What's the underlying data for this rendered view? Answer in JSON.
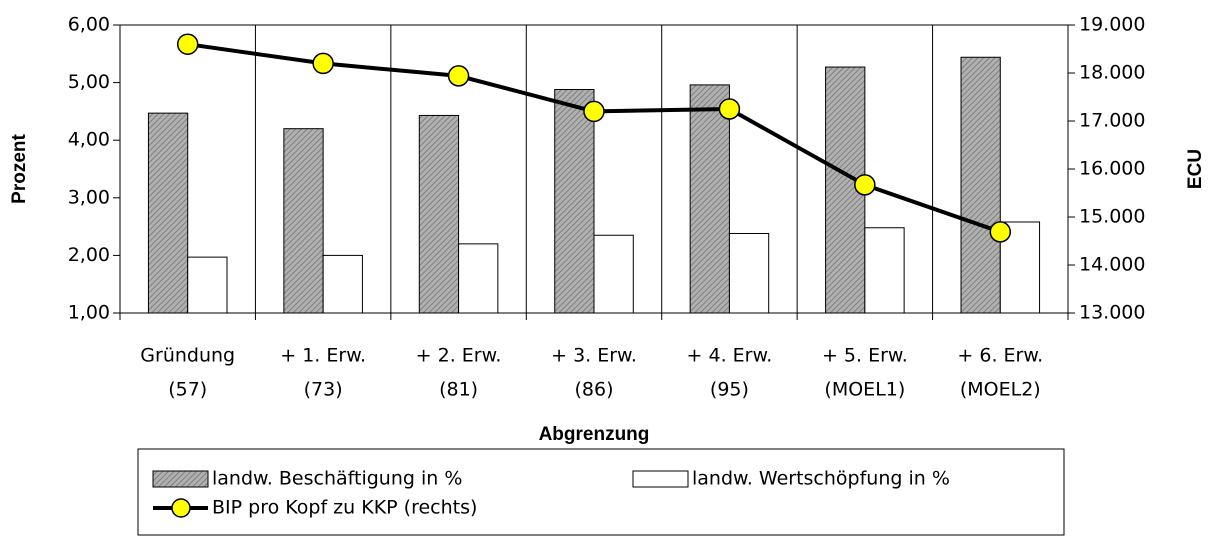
{
  "chart_data": {
    "type": "bar_line",
    "categories": [
      [
        "Gründung",
        "(57)"
      ],
      [
        "+ 1. Erw.",
        "(73)"
      ],
      [
        "+ 2. Erw.",
        "(81)"
      ],
      [
        "+ 3. Erw.",
        "(86)"
      ],
      [
        "+ 4. Erw.",
        "(95)"
      ],
      [
        "+ 5. Erw.",
        "(MOEL1)"
      ],
      [
        "+ 6. Erw.",
        "(MOEL2)"
      ]
    ],
    "x_label": "Abgrenzung",
    "y_label": "Prozent",
    "y2_label": "ECU",
    "ylim": [
      1,
      6
    ],
    "yticks": [
      {
        "value": 1,
        "label": "1,00"
      },
      {
        "value": 2,
        "label": "2,00"
      },
      {
        "value": 3,
        "label": "3,00"
      },
      {
        "value": 4,
        "label": "4,00"
      },
      {
        "value": 5,
        "label": "5,00"
      },
      {
        "value": 6,
        "label": "6,00"
      }
    ],
    "y2lim": [
      13000,
      19000
    ],
    "y2ticks": [
      {
        "value": 13000,
        "label": "13.000"
      },
      {
        "value": 14000,
        "label": "14.000"
      },
      {
        "value": 15000,
        "label": "15.000"
      },
      {
        "value": 16000,
        "label": "16.000"
      },
      {
        "value": 17000,
        "label": "17.000"
      },
      {
        "value": 18000,
        "label": "18.000"
      },
      {
        "value": 19000,
        "label": "19.000"
      }
    ],
    "series": [
      {
        "name": "landw. Beschäftigung in %",
        "type": "bar",
        "color": "#a6a6a6",
        "values": [
          4.47,
          4.2,
          4.43,
          4.88,
          4.96,
          5.27,
          5.44
        ]
      },
      {
        "name": "landw. Wertschöpfung in %",
        "type": "bar",
        "color": "#ffffff",
        "values": [
          1.97,
          2.0,
          2.2,
          2.35,
          2.38,
          2.48,
          2.58
        ]
      },
      {
        "name": "BIP pro Kopf zu KKP (rechts)",
        "type": "line",
        "axis": "y2",
        "color": "#000000",
        "marker_color": "#ffff00",
        "values": [
          18600,
          18200,
          17940,
          17200,
          17250,
          15670,
          14690
        ]
      }
    ]
  }
}
